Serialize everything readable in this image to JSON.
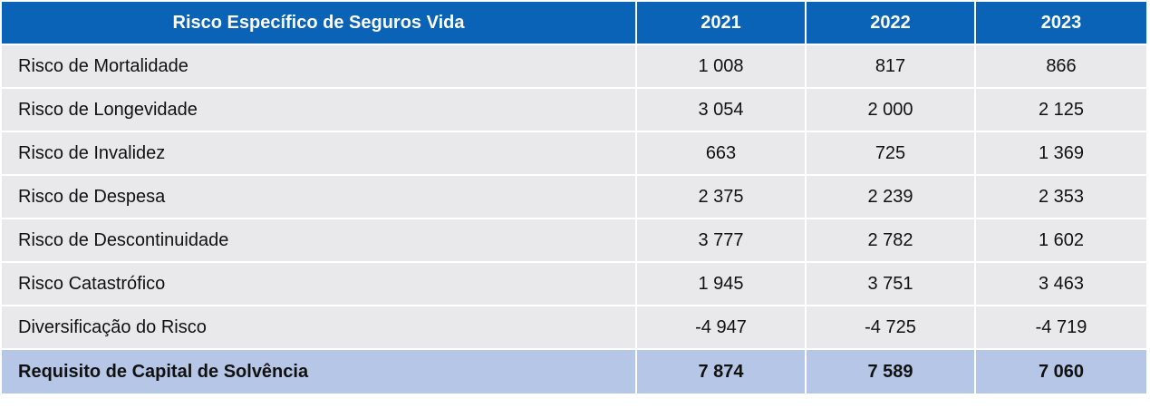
{
  "table": {
    "header": {
      "title": "Risco Específico de Seguros Vida",
      "years": [
        "2021",
        "2022",
        "2023"
      ]
    },
    "rows": [
      {
        "label": "Risco de Mortalidade",
        "values": [
          "1 008",
          "817",
          "866"
        ]
      },
      {
        "label": "Risco de Longevidade",
        "values": [
          "3 054",
          "2 000",
          "2 125"
        ]
      },
      {
        "label": "Risco de Invalidez",
        "values": [
          "663",
          "725",
          "1 369"
        ]
      },
      {
        "label": "Risco de Despesa",
        "values": [
          "2 375",
          "2 239",
          "2 353"
        ]
      },
      {
        "label": "Risco de Descontinuidade",
        "values": [
          "3 777",
          "2 782",
          "1 602"
        ]
      },
      {
        "label": "Risco Catastrófico",
        "values": [
          "1 945",
          "3 751",
          "3 463"
        ]
      },
      {
        "label": "Diversificação do Risco",
        "values": [
          "-4 947",
          "-4 725",
          "-4 719"
        ]
      }
    ],
    "total": {
      "label": "Requisito de Capital de Solvência",
      "values": [
        "7 874",
        "7 589",
        "7 060"
      ]
    },
    "colors": {
      "header_bg": "#0a63b6",
      "row_bg": "#e9e9ec",
      "total_bg": "#b5c6e6"
    }
  }
}
